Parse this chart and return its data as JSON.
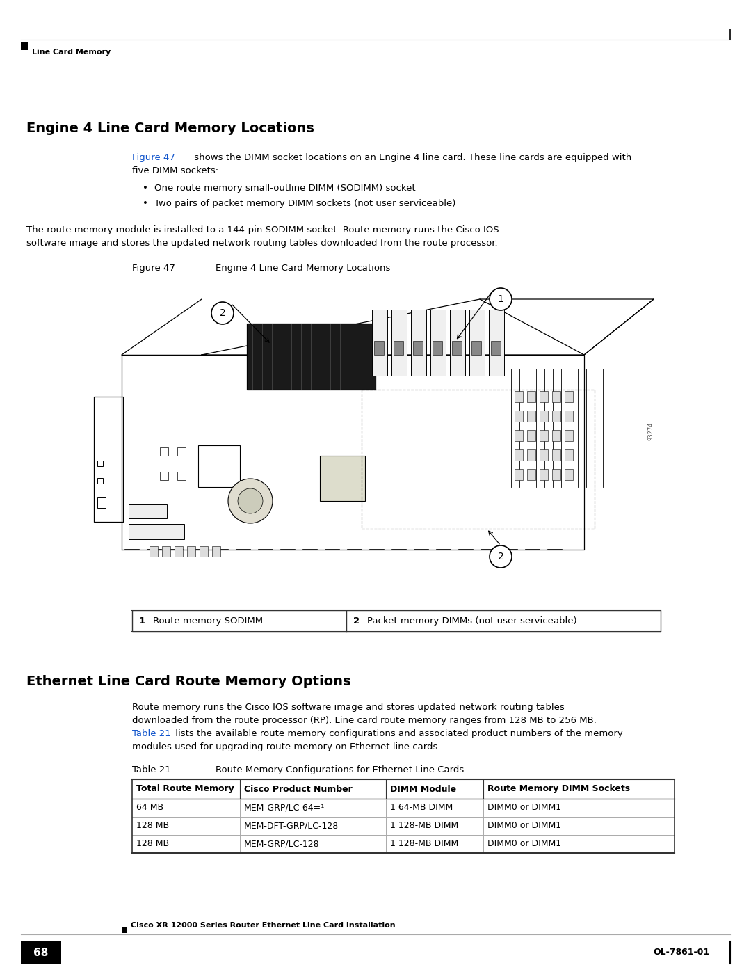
{
  "bg_color": "#ffffff",
  "page_width": 10.8,
  "page_height": 13.97,
  "header_text": "Line Card Memory",
  "footer_left_box_text": "68",
  "footer_center_text": "Cisco XR 12000 Series Router Ethernet Line Card Installation",
  "footer_right_text": "OL-7861-01",
  "section1_title": "Engine 4 Line Card Memory Locations",
  "section2_title": "Ethernet Line Card Route Memory Options",
  "fig_caption_label": "Figure 47",
  "fig_caption_text": "Engine 4 Line Card Memory Locations",
  "legend_row1_num": "1",
  "legend_row1_text": "Route memory SODIMM",
  "legend_row2_num": "2",
  "legend_row2_text": "Packet memory DIMMs (not user serviceable)",
  "table_caption_label": "Table 21",
  "table_caption_text": "Route Memory Configurations for Ethernet Line Cards",
  "table_headers": [
    "Total Route Memory",
    "Cisco Product Number",
    "DIMM Module",
    "Route Memory DIMM Sockets"
  ],
  "table_rows": [
    [
      "64 MB",
      "MEM-GRP/LC-64=¹",
      "1 64-MB DIMM",
      "DIMM0 or DIMM1"
    ],
    [
      "128 MB",
      "MEM-DFT-GRP/LC-128",
      "1 128-MB DIMM",
      "DIMM0 or DIMM1"
    ],
    [
      "128 MB",
      "MEM-GRP/LC-128=",
      "1 128-MB DIMM",
      "DIMM0 or DIMM1"
    ]
  ],
  "link_color": "#1155CC",
  "body_font_size": 9.5,
  "title_font_size": 14,
  "caption_font_size": 9.5,
  "table_header_font_size": 9,
  "table_body_font_size": 9
}
